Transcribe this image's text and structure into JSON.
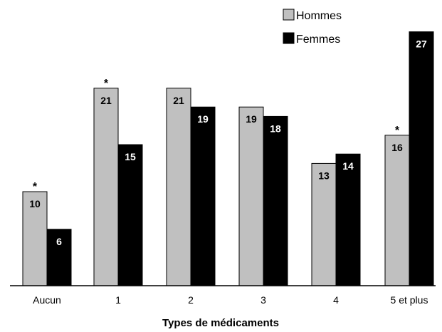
{
  "chart_data": {
    "type": "bar",
    "categories": [
      "Aucun",
      "1",
      "2",
      "3",
      "4",
      "5 et plus"
    ],
    "series": [
      {
        "name": "Hommes",
        "values": [
          10,
          21,
          21,
          19,
          13,
          16
        ],
        "color": "#c0c0c0",
        "label_color": "#000000"
      },
      {
        "name": "Femmes",
        "values": [
          6,
          15,
          19,
          18,
          14,
          27
        ],
        "color": "#000000",
        "label_color": "#ffffff"
      }
    ],
    "significance_marker": "*",
    "significant": [
      {
        "series": 0,
        "category": 0
      },
      {
        "series": 0,
        "category": 1
      },
      {
        "series": 0,
        "category": 5
      }
    ],
    "title": "",
    "xlabel": "Types de médicaments",
    "ylabel": "",
    "ylim": [
      0,
      28
    ],
    "grid": false,
    "legend_position": "top-right"
  }
}
